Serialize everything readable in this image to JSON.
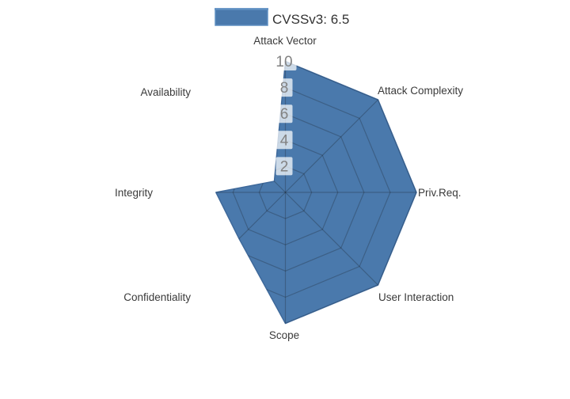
{
  "legend": {
    "label": "CVSSv3: 6.5"
  },
  "colors": {
    "fill": "#4a79ac",
    "outline": "#3e699b",
    "legend_swatch_border": "#5f8fc2",
    "grid": "rgba(20,20,20,0.25)",
    "tick_text": "#828282",
    "tick_bg": "rgba(255,255,255,0.72)",
    "axis_label": "#3a3a3a",
    "legend_text": "#333333",
    "background": "#ffffff"
  },
  "chart_data": {
    "type": "radar",
    "title": "CVSSv3: 6.5",
    "categories": [
      "Attack Vector",
      "Attack Complexity",
      "Priv.Req.",
      "User Interaction",
      "Scope",
      "Confidentiality",
      "Integrity",
      "Availability"
    ],
    "series": [
      {
        "name": "CVSSv3: 6.5",
        "values": [
          10,
          10,
          10,
          10,
          10,
          5,
          5.3,
          1.2
        ]
      }
    ],
    "radial_ticks": [
      2,
      4,
      6,
      8,
      10
    ],
    "radial_range": [
      0,
      10
    ],
    "start_axis": "top",
    "direction": "clockwise",
    "grid": true,
    "grid_visible_only_inside_fill": true,
    "legend_position": "top-center"
  }
}
